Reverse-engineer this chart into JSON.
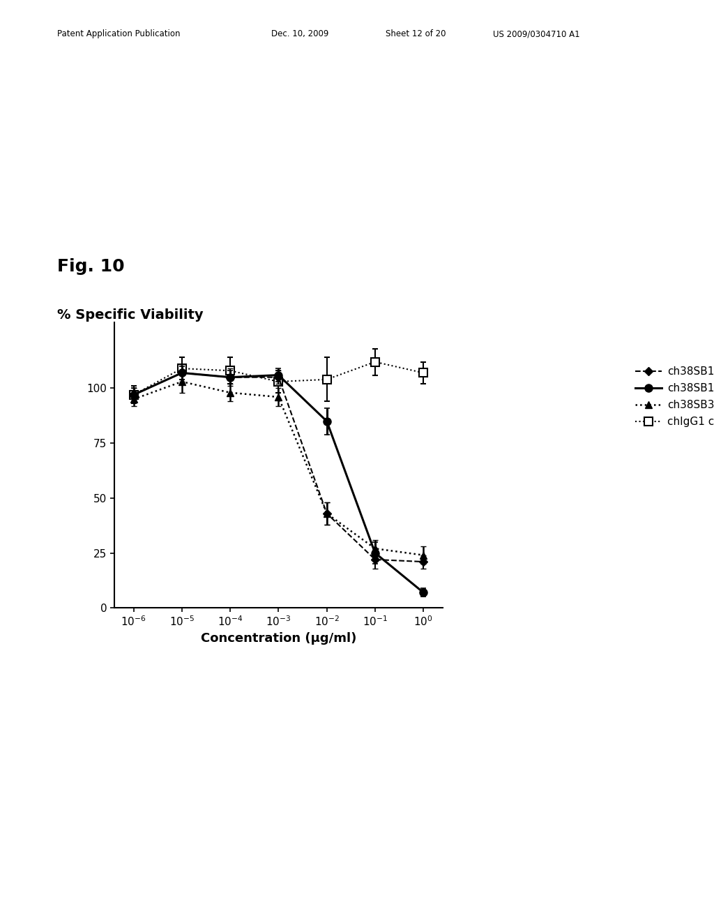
{
  "title_fig": "Fig. 10",
  "ylabel": "% Specific Viability",
  "xlabel": "Concentration (μg/ml)",
  "patent_line1": "Patent Application Publication",
  "patent_line2": "Dec. 10, 2009",
  "patent_line3": "Sheet 12 of 20",
  "patent_line4": "US 2009/0304710 A1",
  "x_values": [
    -6,
    -5,
    -4,
    -3,
    -2,
    -1,
    0
  ],
  "ch38SB18_y": [
    97,
    107,
    105,
    105,
    43,
    22,
    21
  ],
  "ch38SB18_err": [
    3,
    4,
    4,
    3,
    5,
    4,
    3
  ],
  "ch38SB19_y": [
    97,
    107,
    105,
    106,
    85,
    25,
    7
  ],
  "ch38SB19_err": [
    3,
    3,
    3,
    3,
    6,
    5,
    2
  ],
  "ch38SB31_y": [
    95,
    103,
    98,
    96,
    43,
    27,
    24
  ],
  "ch38SB31_err": [
    3,
    5,
    4,
    4,
    5,
    4,
    4
  ],
  "chIgG1_y": [
    97,
    109,
    108,
    103,
    104,
    112,
    107
  ],
  "chIgG1_err": [
    4,
    5,
    6,
    5,
    10,
    6,
    5
  ],
  "ylim": [
    0,
    130
  ],
  "yticks": [
    0,
    25,
    50,
    75,
    100
  ],
  "background_color": "white",
  "figsize": [
    10.24,
    13.2
  ],
  "dpi": 100
}
